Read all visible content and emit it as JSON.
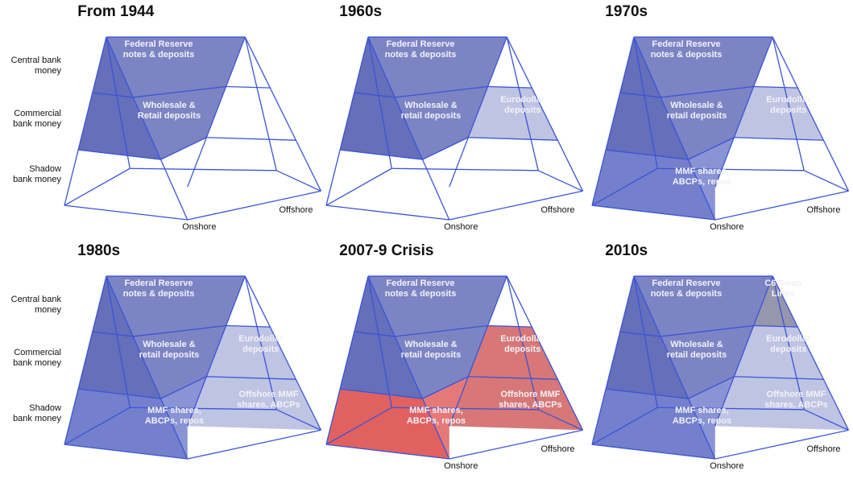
{
  "panels": [
    {
      "title": "From 1944",
      "row_labels": {
        "central": "Central bank\nmoney",
        "commercial": "Commercial\nbank money",
        "shadow": "Shadow\nbank money"
      },
      "onshore": "Onshore",
      "offshore": "Offshore",
      "cells": {
        "cb_on": "Federal Reserve\nnotes & deposits",
        "com_on": "Wholesale &\nRetail deposits"
      }
    },
    {
      "title": "1960s",
      "onshore": "Onshore",
      "offshore": "Offshore",
      "cells": {
        "cb_on": "Federal Reserve\nnotes & deposits",
        "com_on": "Wholesale &\nretail deposits",
        "com_off": "Eurodollar\ndeposits"
      }
    },
    {
      "title": "1970s",
      "onshore": "Onshore",
      "offshore": "Offshore",
      "cells": {
        "cb_on": "Federal Reserve\nnotes & deposits",
        "com_on": "Wholesale &\nretail deposits",
        "com_off": "Eurodollar\ndeposits",
        "sh_on": "MMF shares,\nABCPs, repos"
      }
    },
    {
      "title": "1980s",
      "row_labels": {
        "central": "Central bank\nmoney",
        "commercial": "Commercial\nbank money",
        "shadow": "Shadow\nbank money"
      },
      "cells": {
        "cb_on": "Federal Reserve\nnotes & deposits",
        "com_on": "Wholesale &\nretail deposits",
        "com_off": "Eurodollar\ndeposits",
        "sh_on": "MMF shares,\nABCPs, repos",
        "sh_off": "Offshore MMF\nshares, ABCPs"
      }
    },
    {
      "title": "2007-9 Crisis",
      "onshore": "Onshore",
      "offshore": "Offshore",
      "cells": {
        "cb_on": "Federal Reserve\nnotes & deposits",
        "com_on": "Wholesale &\nretail deposits",
        "com_off": "Eurodollar\ndeposits",
        "sh_on": "MMF shares,\nABCPs, repos",
        "sh_off": "Offshore MMF\nshares, ABCPs"
      }
    },
    {
      "title": "2010s",
      "onshore": "Onshore",
      "offshore": "Offshore",
      "cells": {
        "cb_on": "Federal Reserve\nnotes & deposits",
        "cb_off": "C6 Swap\nLines",
        "com_on": "Wholesale &\nretail deposits",
        "com_off": "Eurodollar\ndeposits",
        "sh_on": "MMF shares,\nABCPs, repos",
        "sh_off": "Offshore MMF\nshares, ABCPs"
      }
    }
  ],
  "colors": {
    "onshore_blue": "#3b4bb0",
    "offshore_blue": "#7c88cc",
    "crisis_red": "#e23a3a",
    "wire": "#3a55d8"
  }
}
